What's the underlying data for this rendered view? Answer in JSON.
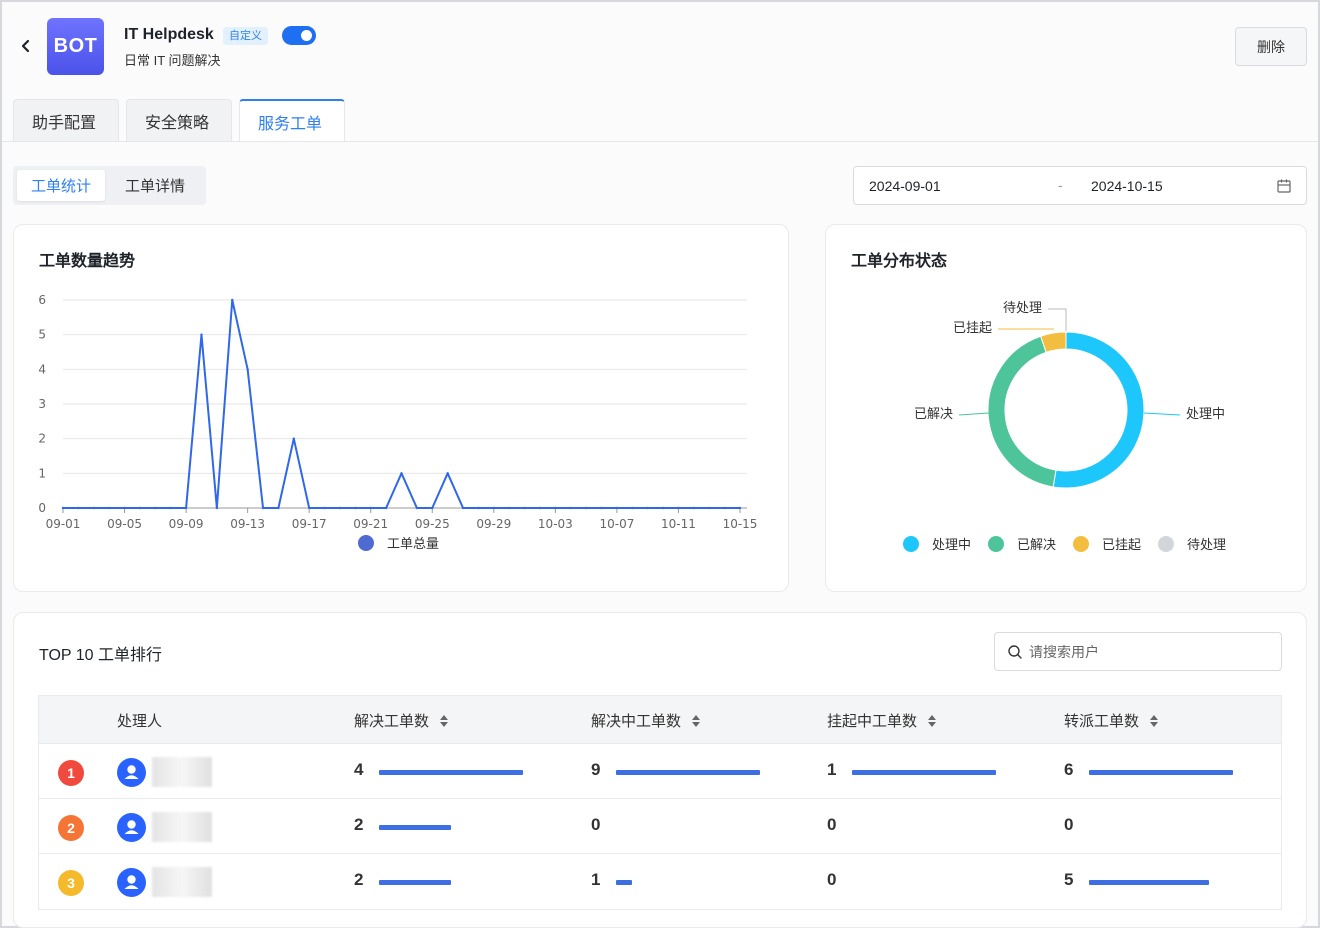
{
  "header": {
    "bot_avatar_text": "BOT",
    "bot_name": "IT Helpdesk",
    "custom_badge": "自定义",
    "toggle_on": true,
    "bot_desc": "日常 IT 问题解决",
    "delete_label": "删除"
  },
  "tabs": [
    {
      "label": "助手配置",
      "active": false
    },
    {
      "label": "安全策略",
      "active": false
    },
    {
      "label": "服务工单",
      "active": true
    }
  ],
  "subtabs": [
    {
      "label": "工单统计",
      "active": true
    },
    {
      "label": "工单详情",
      "active": false
    }
  ],
  "date_range": {
    "start": "2024-09-01",
    "separator": "-",
    "end": "2024-10-15"
  },
  "colors": {
    "accent": "#2e7ff0",
    "line": "#2f68e8",
    "processing": "#1ec7fb",
    "resolved": "#4dc49a",
    "suspended": "#f3bd3f",
    "pending": "#d2d6db"
  },
  "trend": {
    "title": "工单数量趋势",
    "legend": "工单总量",
    "chart_data": {
      "type": "line",
      "x": [
        "09-01",
        "09-02",
        "09-03",
        "09-04",
        "09-05",
        "09-06",
        "09-07",
        "09-08",
        "09-09",
        "09-10",
        "09-11",
        "09-12",
        "09-13",
        "09-14",
        "09-15",
        "09-16",
        "09-17",
        "09-18",
        "09-19",
        "09-20",
        "09-21",
        "09-22",
        "09-23",
        "09-24",
        "09-25",
        "09-26",
        "09-27",
        "09-28",
        "09-29",
        "09-30",
        "10-01",
        "10-02",
        "10-03",
        "10-04",
        "10-05",
        "10-06",
        "10-07",
        "10-08",
        "10-09",
        "10-10",
        "10-11",
        "10-12",
        "10-13",
        "10-14",
        "10-15"
      ],
      "series": [
        {
          "name": "工单总量",
          "values": [
            0,
            0,
            0,
            0,
            0,
            0,
            0,
            0,
            0,
            5,
            0,
            6,
            4,
            0,
            0,
            2,
            0,
            0,
            0,
            0,
            0,
            0,
            1,
            0,
            0,
            1,
            0,
            0,
            0,
            0,
            0,
            0,
            0,
            0,
            0,
            0,
            0,
            0,
            0,
            0,
            0,
            0,
            0,
            0,
            0
          ]
        }
      ],
      "xticks": [
        "09-01",
        "09-05",
        "09-09",
        "09-13",
        "09-17",
        "09-21",
        "09-25",
        "09-29",
        "10-03",
        "10-07",
        "10-11",
        "10-15"
      ],
      "yticks": [
        0,
        1,
        2,
        3,
        4,
        5,
        6
      ],
      "ylim": [
        0,
        6
      ],
      "grid": true,
      "legend_position": "bottom"
    }
  },
  "distribution": {
    "title": "工单分布状态",
    "chart_data": {
      "type": "pie",
      "labels": [
        "处理中",
        "已解决",
        "已挂起",
        "待处理"
      ],
      "values": [
        10,
        8,
        1,
        0
      ],
      "legend_position": "bottom"
    },
    "legend": [
      "处理中",
      "已解决",
      "已挂起",
      "待处理"
    ]
  },
  "top10": {
    "title": "TOP 10 工单排行",
    "search_placeholder": "请搜索用户",
    "columns": [
      "处理人",
      "解决工单数",
      "解决中工单数",
      "挂起中工单数",
      "转派工单数"
    ],
    "rows": [
      {
        "rank": "1",
        "rank_color": "#f04a3e",
        "resolved": "4",
        "in_progress": "9",
        "suspended": "1",
        "transferred": "6"
      },
      {
        "rank": "2",
        "rank_color": "#f47535",
        "resolved": "2",
        "in_progress": "0",
        "suspended": "0",
        "transferred": "0"
      },
      {
        "rank": "3",
        "rank_color": "#f5b92c",
        "resolved": "2",
        "in_progress": "1",
        "suspended": "0",
        "transferred": "5"
      }
    ]
  }
}
